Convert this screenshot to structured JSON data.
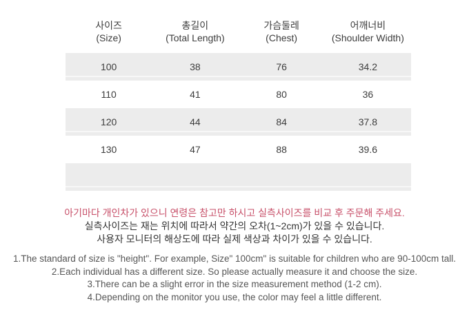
{
  "table": {
    "columns": [
      {
        "ko": "사이즈",
        "en": "(Size)"
      },
      {
        "ko": "총길이",
        "en": "(Total Length)"
      },
      {
        "ko": "가슴둘레",
        "en": "(Chest)"
      },
      {
        "ko": "어깨너비",
        "en": "(Shoulder Width)"
      }
    ],
    "rows": [
      {
        "size": "100",
        "total_length": "38",
        "chest": "76",
        "shoulder_width": "34.2"
      },
      {
        "size": "110",
        "total_length": "41",
        "chest": "80",
        "shoulder_width": "36"
      },
      {
        "size": "120",
        "total_length": "44",
        "chest": "84",
        "shoulder_width": "37.8"
      },
      {
        "size": "130",
        "total_length": "47",
        "chest": "88",
        "shoulder_width": "39.6"
      }
    ]
  },
  "notices": {
    "korean": [
      "아기마다 개인차가 있으니 연령은 참고만 하시고 실측사이즈를 비교 후 주문해 주세요.",
      "실측사이즈는 재는 위치에 따라서 약간의 오차(1~2cm)가 있을 수 있습니다.",
      "사용자 모니터의 해상도에 따라 실제 색상과 차이가 있을 수 있습니다."
    ],
    "english": [
      "1.The standard of size is \"height\". For example,  Size\" 100cm\" is suitable for children who are 90-100cm tall.",
      "2.Each individual has a different size. So please actually measure it and choose the size.",
      "3.There can be a slight error in the size measurement method (1-2 cm).",
      "4.Depending on the monitor you use, the color may feel a little different."
    ]
  },
  "colors": {
    "row_stripe": "#ececec",
    "highlight_text": "#c74f68",
    "body_text": "#3c3c3c",
    "secondary_text": "#555555"
  }
}
